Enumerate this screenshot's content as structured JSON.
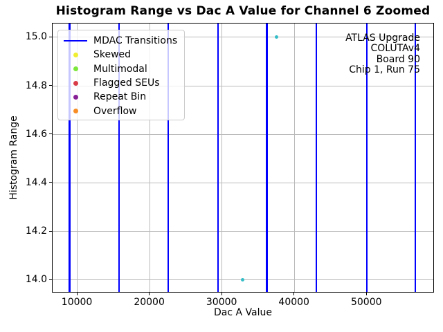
{
  "chart_data": {
    "type": "scatter",
    "title": "Histogram Range vs Dac A Value for Channel 6 Zoomed",
    "xlabel": "Dac A Value",
    "ylabel": "Histogram Range",
    "xlim": [
      6550,
      59350
    ],
    "ylim": [
      13.947,
      15.058
    ],
    "grid": true,
    "legend_position": "upper left",
    "x_ticks": [
      {
        "value": 10000,
        "label": "10000"
      },
      {
        "value": 20000,
        "label": "20000"
      },
      {
        "value": 30000,
        "label": "30000"
      },
      {
        "value": 40000,
        "label": "40000"
      },
      {
        "value": 50000,
        "label": "50000"
      }
    ],
    "y_ticks": [
      {
        "value": 14.0,
        "label": "14.0"
      },
      {
        "value": 14.2,
        "label": "14.2"
      },
      {
        "value": 14.4,
        "label": "14.4"
      },
      {
        "value": 14.6,
        "label": "14.6"
      },
      {
        "value": 14.8,
        "label": "14.8"
      },
      {
        "value": 15.0,
        "label": "15.0"
      }
    ],
    "mdac_transitions": {
      "label": "MDAC Transitions",
      "color": "#0000ff",
      "x_values": [
        9000,
        15850,
        22620,
        29500,
        36260,
        43080,
        50070,
        56760
      ]
    },
    "visible_points": {
      "color": "#35bdc7",
      "points": [
        {
          "x": 32870,
          "y": 14.0
        },
        {
          "x": 37570,
          "y": 15.0
        }
      ]
    },
    "legend": [
      {
        "label": "MDAC Transitions",
        "handle": "line",
        "color": "#0000ff"
      },
      {
        "label": "Skewed",
        "handle": "dot",
        "color": "#f0ee31"
      },
      {
        "label": "Multimodal",
        "handle": "dot",
        "color": "#7ce63a"
      },
      {
        "label": "Flagged SEUs",
        "handle": "dot",
        "color": "#d93b47"
      },
      {
        "label": "Repeat Bin",
        "handle": "dot",
        "color": "#871f96"
      },
      {
        "label": "Overflow",
        "handle": "dot",
        "color": "#f78d24"
      }
    ],
    "annotation": {
      "lines": [
        "ATLAS Upgrade",
        "COLUTAv4",
        "Board 90",
        "Chip 1, Run 75"
      ]
    }
  }
}
